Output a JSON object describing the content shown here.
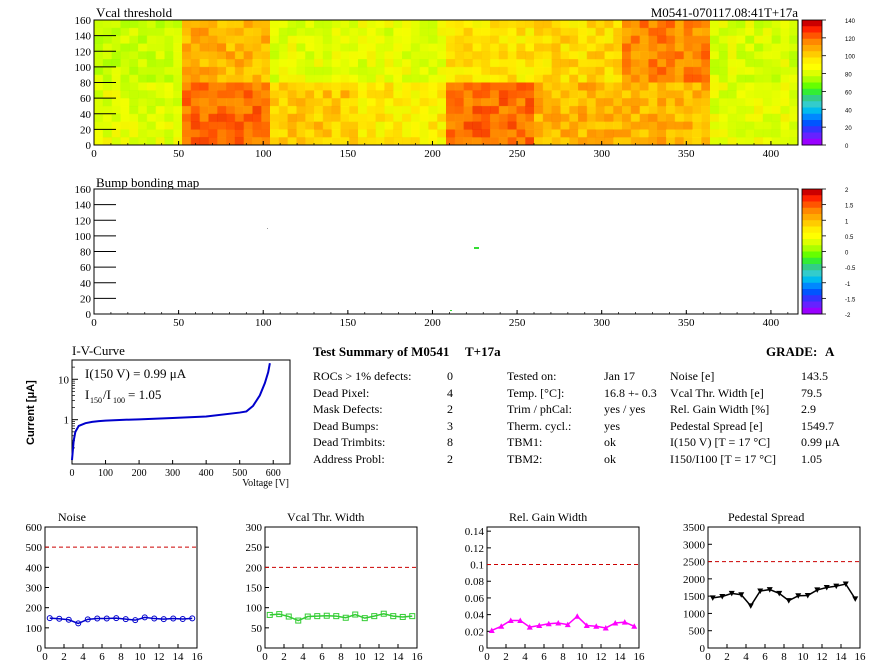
{
  "header": {
    "title": "Vcal threshold",
    "module_id": "M0541-070117.08:41T+17a"
  },
  "bump_map_title": "Bump bonding map",
  "iv_curve": {
    "title": "I-V-Curve",
    "ylabel": "Current [μA]",
    "xlabel": "Voltage [V]",
    "annotation_current": "I(150 V) = 0.99 μA",
    "annotation_ratio_prefix": "I",
    "annotation_ratio_sub1": "150",
    "annotation_ratio_sub2": "100",
    "annotation_ratio_value": "= 1.05"
  },
  "summary": {
    "title": "Test Summary of M0541",
    "tag": "T+17a",
    "grade_label": "GRADE:",
    "grade_value": "A",
    "col1": [
      {
        "label": "ROCs > 1% defects:",
        "value": "0"
      },
      {
        "label": "Dead Pixel:",
        "value": "4"
      },
      {
        "label": "Mask Defects:",
        "value": "2"
      },
      {
        "label": "Dead Bumps:",
        "value": "3"
      },
      {
        "label": "Dead Trimbits:",
        "value": "8"
      },
      {
        "label": "Address Probl:",
        "value": "2"
      }
    ],
    "col2": [
      {
        "label": "Tested on:",
        "value": "Jan 17"
      },
      {
        "label": "Temp. [°C]:",
        "value": "16.8 +- 0.3"
      },
      {
        "label": "Trim / phCal:",
        "value": "yes / yes"
      },
      {
        "label": "Therm. cycl.:",
        "value": "yes"
      },
      {
        "label": "TBM1:",
        "value": "ok"
      },
      {
        "label": "TBM2:",
        "value": "ok"
      }
    ],
    "col3": [
      {
        "label": "Noise [e]",
        "value": "143.5"
      },
      {
        "label": "Vcal Thr. Width [e]",
        "value": "79.5"
      },
      {
        "label": "Rel. Gain Width [%]",
        "value": "2.9"
      },
      {
        "label": "Pedestal Spread [e]",
        "value": "1549.7"
      },
      {
        "label": "I(150 V) [T = 17 °C]",
        "value": "0.99 μA"
      },
      {
        "label": "I150/I100 [T = 17 °C]",
        "value": "1.05"
      }
    ]
  },
  "colors": {
    "iv_line": "#0000cc",
    "noise": "#0000cc",
    "vcal": "#33cc33",
    "gain": "#ff00ff",
    "pedestal": "#000000",
    "threshold_line": "#cc0000"
  },
  "chart_data": [
    {
      "type": "heatmap",
      "title": "Vcal threshold",
      "x_ticks": [
        "0",
        "50",
        "100",
        "150",
        "200",
        "250",
        "300",
        "350",
        "400"
      ],
      "y_ticks": [
        "0",
        "20",
        "40",
        "60",
        "80",
        "100",
        "120",
        "140",
        "160"
      ],
      "xlim": [
        0,
        416
      ],
      "ylim": [
        0,
        160
      ],
      "colorbar_ticks": [
        "0",
        "20",
        "40",
        "60",
        "80",
        "100",
        "120",
        "140"
      ],
      "blocks_top": [
        95,
        118,
        100,
        100,
        110,
        112,
        125,
        98
      ],
      "blocks_bottom": [
        100,
        128,
        115,
        108,
        128,
        118,
        118,
        100
      ]
    },
    {
      "type": "heatmap",
      "title": "Bump bonding map",
      "x_ticks": [
        "0",
        "50",
        "100",
        "150",
        "200",
        "250",
        "300",
        "350",
        "400"
      ],
      "y_ticks": [
        "0",
        "20",
        "40",
        "60",
        "80",
        "100",
        "120",
        "140",
        "160"
      ],
      "xlim": [
        0,
        416
      ],
      "ylim": [
        0,
        160
      ],
      "colorbar_ticks": [
        "2",
        "1.5",
        "1",
        "0.5",
        "0",
        "-0.5",
        "-1",
        "-1.5",
        "-2"
      ]
    },
    {
      "type": "line",
      "title": "I-V-Curve",
      "xlabel": "Voltage [V]",
      "ylabel": "Current [μA]",
      "x_ticks": [
        "0",
        "100",
        "200",
        "300",
        "400",
        "500",
        "600"
      ],
      "y_ticks": [
        "1",
        "10"
      ],
      "xlim": [
        0,
        650
      ],
      "ylim": [
        0.08,
        30
      ],
      "log_y": true,
      "x": [
        0,
        5,
        10,
        20,
        40,
        60,
        80,
        100,
        150,
        200,
        300,
        400,
        500,
        520,
        540,
        560,
        575,
        585,
        590
      ],
      "y": [
        0.1,
        0.3,
        0.5,
        0.7,
        0.82,
        0.88,
        0.92,
        0.95,
        0.99,
        1.02,
        1.1,
        1.2,
        1.5,
        1.6,
        2.2,
        4.0,
        8.0,
        15.0,
        25.0
      ]
    },
    {
      "type": "line",
      "title": "Noise",
      "x_ticks": [
        "0",
        "2",
        "4",
        "6",
        "8",
        "10",
        "12",
        "14",
        "16"
      ],
      "y_ticks": [
        "0",
        "100",
        "200",
        "300",
        "400",
        "500",
        "600"
      ],
      "xlim": [
        0,
        16
      ],
      "ylim": [
        0,
        600
      ],
      "threshold": 500,
      "x": [
        0.5,
        1.5,
        2.5,
        3.5,
        4.5,
        5.5,
        6.5,
        7.5,
        8.5,
        9.5,
        10.5,
        11.5,
        12.5,
        13.5,
        14.5,
        15.5
      ],
      "y": [
        148,
        145,
        140,
        122,
        142,
        146,
        146,
        148,
        143,
        138,
        152,
        146,
        143,
        146,
        144,
        147
      ]
    },
    {
      "type": "line",
      "title": "Vcal Thr. Width",
      "x_ticks": [
        "0",
        "2",
        "4",
        "6",
        "8",
        "10",
        "12",
        "14",
        "16"
      ],
      "y_ticks": [
        "0",
        "50",
        "100",
        "150",
        "200",
        "250",
        "300"
      ],
      "xlim": [
        0,
        16
      ],
      "ylim": [
        0,
        300
      ],
      "threshold": 200,
      "x": [
        0.5,
        1.5,
        2.5,
        3.5,
        4.5,
        5.5,
        6.5,
        7.5,
        8.5,
        9.5,
        10.5,
        11.5,
        12.5,
        13.5,
        14.5,
        15.5
      ],
      "y": [
        82,
        84,
        78,
        68,
        78,
        79,
        80,
        79,
        75,
        83,
        74,
        79,
        85,
        79,
        77,
        79
      ]
    },
    {
      "type": "line",
      "title": "Rel. Gain Width",
      "x_ticks": [
        "0",
        "2",
        "4",
        "6",
        "8",
        "10",
        "12",
        "14",
        "16"
      ],
      "y_ticks": [
        "0",
        "0.02",
        "0.04",
        "0.06",
        "0.08",
        "0.1",
        "0.12",
        "0.14"
      ],
      "xlim": [
        0,
        16
      ],
      "ylim": [
        0,
        0.145
      ],
      "threshold": 0.1,
      "x": [
        0.5,
        1.5,
        2.5,
        3.5,
        4.5,
        5.5,
        6.5,
        7.5,
        8.5,
        9.5,
        10.5,
        11.5,
        12.5,
        13.5,
        14.5,
        15.5
      ],
      "y": [
        0.021,
        0.026,
        0.033,
        0.033,
        0.025,
        0.027,
        0.029,
        0.03,
        0.028,
        0.038,
        0.027,
        0.026,
        0.024,
        0.03,
        0.031,
        0.026
      ]
    },
    {
      "type": "line",
      "title": "Pedestal Spread",
      "x_ticks": [
        "0",
        "2",
        "4",
        "6",
        "8",
        "10",
        "12",
        "14",
        "16"
      ],
      "y_ticks": [
        "0",
        "500",
        "1000",
        "1500",
        "2000",
        "2500",
        "3000",
        "3500"
      ],
      "xlim": [
        0,
        16
      ],
      "ylim": [
        0,
        3500
      ],
      "threshold": 2500,
      "x": [
        0.5,
        1.5,
        2.5,
        3.5,
        4.5,
        5.5,
        6.5,
        7.5,
        8.5,
        9.5,
        10.5,
        11.5,
        12.5,
        13.5,
        14.5,
        15.5
      ],
      "y": [
        1450,
        1490,
        1580,
        1540,
        1220,
        1650,
        1690,
        1580,
        1370,
        1510,
        1520,
        1680,
        1750,
        1790,
        1850,
        1420
      ]
    }
  ]
}
